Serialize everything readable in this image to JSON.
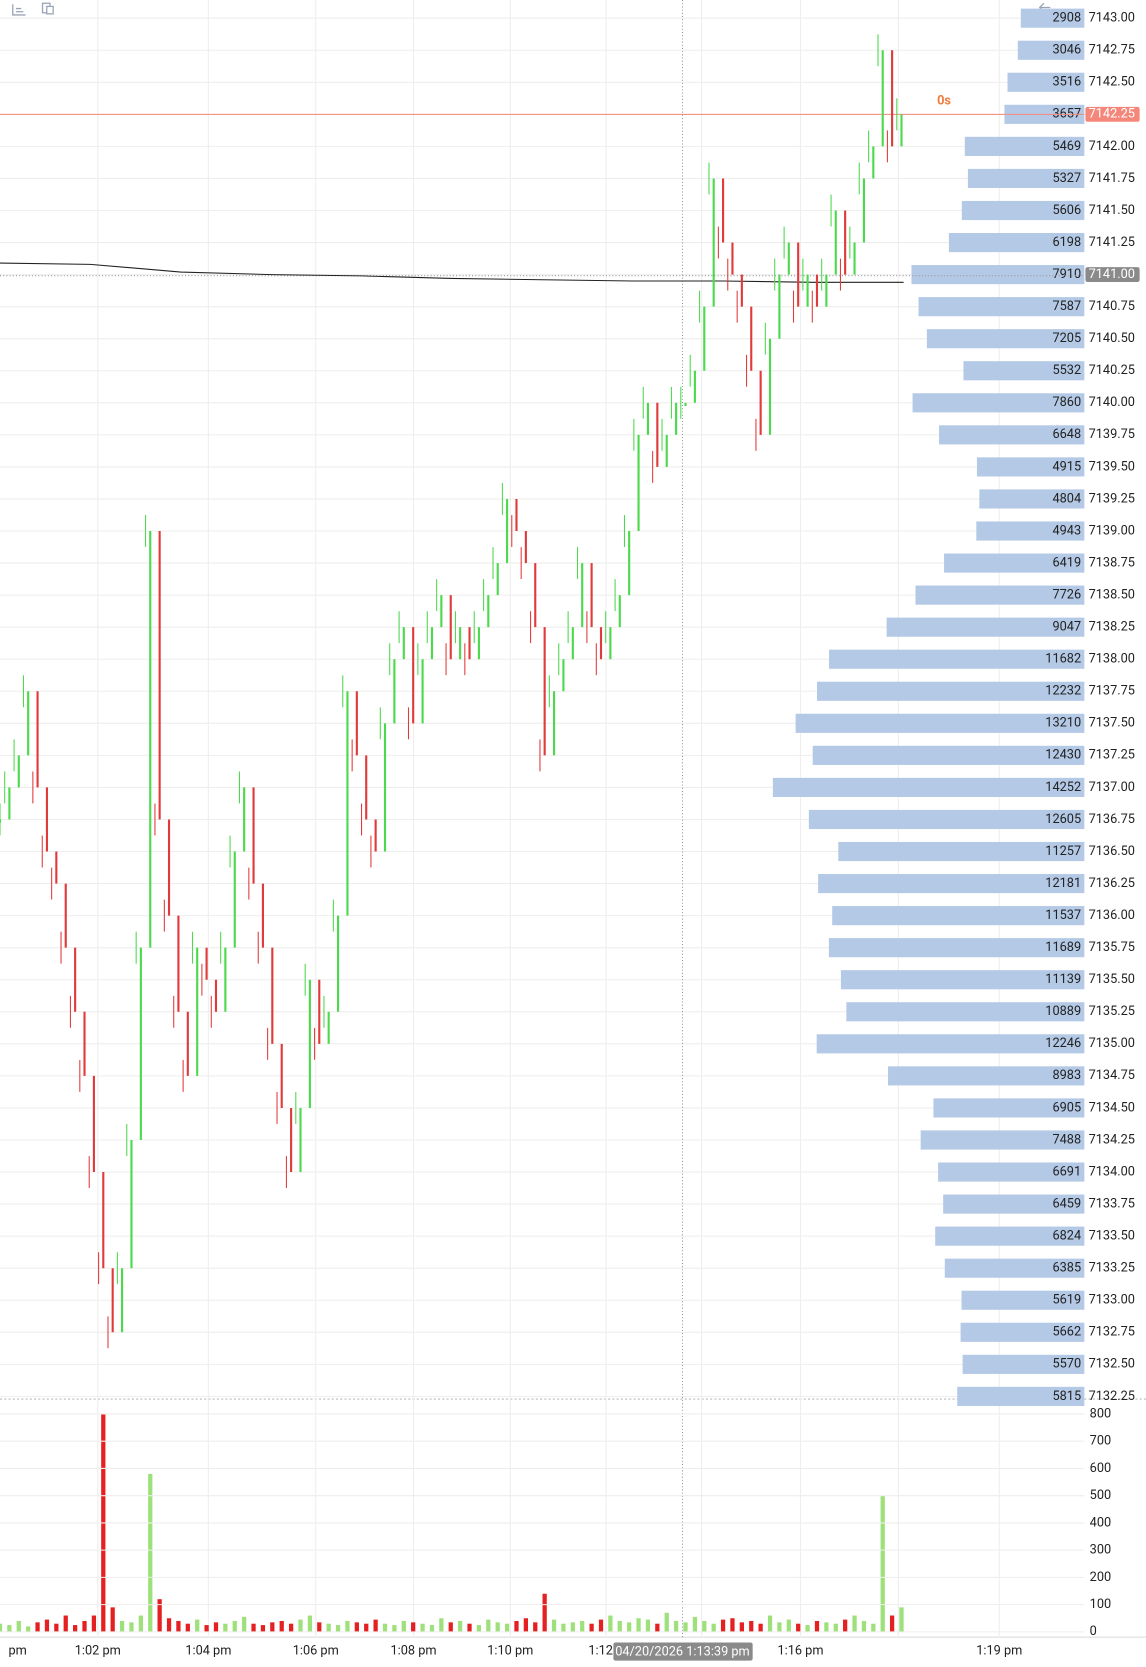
{
  "chart_data": {
    "type": "tick",
    "price": [
      7136.75,
      7137.0,
      7137.25,
      7137.75,
      7137.0,
      7136.5,
      7136.25,
      7135.75,
      7135.25,
      7134.75,
      7134.0,
      7133.25,
      7132.75,
      7133.25,
      7134.25,
      7135.75,
      7139.0,
      7136.75,
      7136.0,
      7135.25,
      7134.75,
      7135.75,
      7135.5,
      7135.25,
      7135.75,
      7136.5,
      7137.0,
      7136.25,
      7135.75,
      7135.0,
      7134.5,
      7134.0,
      7134.5,
      7135.5,
      7135.0,
      7135.25,
      7136.0,
      7137.75,
      7137.25,
      7136.75,
      7136.5,
      7137.5,
      7138.0,
      7138.25,
      7137.5,
      7138.0,
      7138.25,
      7138.5,
      7138.0,
      7138.25,
      7138.0,
      7138.25,
      7138.5,
      7138.75,
      7139.25,
      7139.0,
      7138.75,
      7138.25,
      7137.25,
      7137.75,
      7138.0,
      7138.25,
      7138.75,
      7138.25,
      7138.0,
      7138.25,
      7138.5,
      7139.0,
      7139.75,
      7140.0,
      7139.5,
      7139.75,
      7140.0,
      7140.0,
      7140.25,
      7140.75,
      7141.75,
      7141.25,
      7141.0,
      7140.75,
      7140.25,
      7139.75,
      7140.5,
      7141.0,
      7141.25,
      7140.75,
      7141.0,
      7140.75,
      7141.0,
      7141.5,
      7141.0,
      7141.25,
      7141.75,
      7142.0,
      7142.75,
      7142.0,
      7142.25
    ],
    "volume": [
      30,
      25,
      40,
      20,
      35,
      45,
      30,
      60,
      25,
      40,
      60,
      800,
      90,
      40,
      35,
      60,
      580,
      120,
      50,
      40,
      30,
      45,
      25,
      35,
      30,
      40,
      55,
      30,
      25,
      35,
      40,
      30,
      45,
      60,
      35,
      30,
      25,
      40,
      35,
      30,
      45,
      30,
      25,
      40,
      35,
      30,
      25,
      50,
      35,
      40,
      30,
      25,
      45,
      35,
      30,
      40,
      50,
      35,
      140,
      45,
      30,
      35,
      40,
      30,
      45,
      60,
      40,
      35,
      50,
      45,
      30,
      70,
      40,
      35,
      55,
      40,
      30,
      45,
      50,
      35,
      40,
      30,
      60,
      35,
      45,
      30,
      25,
      40,
      35,
      30,
      45,
      60,
      40,
      30,
      500,
      60,
      90
    ],
    "vwap": [
      7141.09,
      7141.08,
      7141.02,
      7141.0,
      7140.99,
      7140.97,
      7140.96,
      7140.95,
      7140.95,
      7140.94,
      7140.94
    ],
    "up_color": "#4cd94c",
    "down_color": "#e03a3a",
    "vwap_color": "#222222",
    "ylim": [
      7132.25,
      7143.125
    ],
    "yticks": [
      {
        "value": 7143.0,
        "label": "7143.00"
      },
      {
        "value": 7142.75,
        "label": "7142.75"
      },
      {
        "value": 7142.5,
        "label": "7142.50"
      },
      {
        "value": 7142.25,
        "label": "7142.25"
      },
      {
        "value": 7142.0,
        "label": "7142.00"
      },
      {
        "value": 7141.75,
        "label": "7141.75"
      },
      {
        "value": 7141.5,
        "label": "7141.50"
      },
      {
        "value": 7141.25,
        "label": "7141.25"
      },
      {
        "value": 7141.0,
        "label": "7141.00"
      },
      {
        "value": 7140.75,
        "label": "7140.75"
      },
      {
        "value": 7140.5,
        "label": "7140.50"
      },
      {
        "value": 7140.25,
        "label": "7140.25"
      },
      {
        "value": 7140.0,
        "label": "7140.00"
      },
      {
        "value": 7139.75,
        "label": "7139.75"
      },
      {
        "value": 7139.5,
        "label": "7139.50"
      },
      {
        "value": 7139.25,
        "label": "7139.25"
      },
      {
        "value": 7139.0,
        "label": "7139.00"
      },
      {
        "value": 7138.75,
        "label": "7138.75"
      },
      {
        "value": 7138.5,
        "label": "7138.50"
      },
      {
        "value": 7138.25,
        "label": "7138.25"
      },
      {
        "value": 7138.0,
        "label": "7138.00"
      },
      {
        "value": 7137.75,
        "label": "7137.75"
      },
      {
        "value": 7137.5,
        "label": "7137.50"
      },
      {
        "value": 7137.25,
        "label": "7137.25"
      },
      {
        "value": 7137.0,
        "label": "7137.00"
      },
      {
        "value": 7136.75,
        "label": "7136.75"
      },
      {
        "value": 7136.5,
        "label": "7136.50"
      },
      {
        "value": 7136.25,
        "label": "7136.25"
      },
      {
        "value": 7136.0,
        "label": "7136.00"
      },
      {
        "value": 7135.75,
        "label": "7135.75"
      },
      {
        "value": 7135.5,
        "label": "7135.50"
      },
      {
        "value": 7135.25,
        "label": "7135.25"
      },
      {
        "value": 7135.0,
        "label": "7135.00"
      },
      {
        "value": 7134.75,
        "label": "7134.75"
      },
      {
        "value": 7134.5,
        "label": "7134.50"
      },
      {
        "value": 7134.25,
        "label": "7134.25"
      },
      {
        "value": 7134.0,
        "label": "7134.00"
      },
      {
        "value": 7133.75,
        "label": "7133.75"
      },
      {
        "value": 7133.5,
        "label": "7133.50"
      },
      {
        "value": 7133.25,
        "label": "7133.25"
      },
      {
        "value": 7133.0,
        "label": "7133.00"
      },
      {
        "value": 7132.75,
        "label": "7132.75"
      },
      {
        "value": 7132.5,
        "label": "7132.50"
      },
      {
        "value": 7132.25,
        "label": "7132.25"
      }
    ],
    "profile": [
      2908,
      3046,
      3516,
      3657,
      5469,
      5327,
      5606,
      6198,
      7910,
      7587,
      7205,
      5532,
      7860,
      6648,
      4915,
      4804,
      4943,
      6419,
      7726,
      9047,
      11682,
      12232,
      13210,
      12430,
      14252,
      12605,
      11257,
      12181,
      11537,
      11689,
      11139,
      10889,
      12246,
      8983,
      6905,
      7488,
      6691,
      6459,
      6824,
      6385,
      5619,
      5662,
      5570,
      5815
    ],
    "profile_color": "#b4c9e6",
    "current_price": 7142.25,
    "current_color": "#f4877a",
    "reference_price": 7141.0,
    "reference_color": "#8a8a8a",
    "countdown": "0s",
    "volume_ylim": [
      0,
      800
    ],
    "volume_yticks": [
      0,
      100,
      200,
      300,
      400,
      500,
      600,
      700,
      800
    ],
    "time_labels": [
      "pm",
      "1:02 pm",
      "1:04 pm",
      "1:06 pm",
      "1:08 pm",
      "1:10 pm",
      "1:12",
      "1:16 pm",
      "1:19 pm"
    ],
    "crosshair_label": "04/20/2026 1:13:39 pm",
    "grid": true
  }
}
